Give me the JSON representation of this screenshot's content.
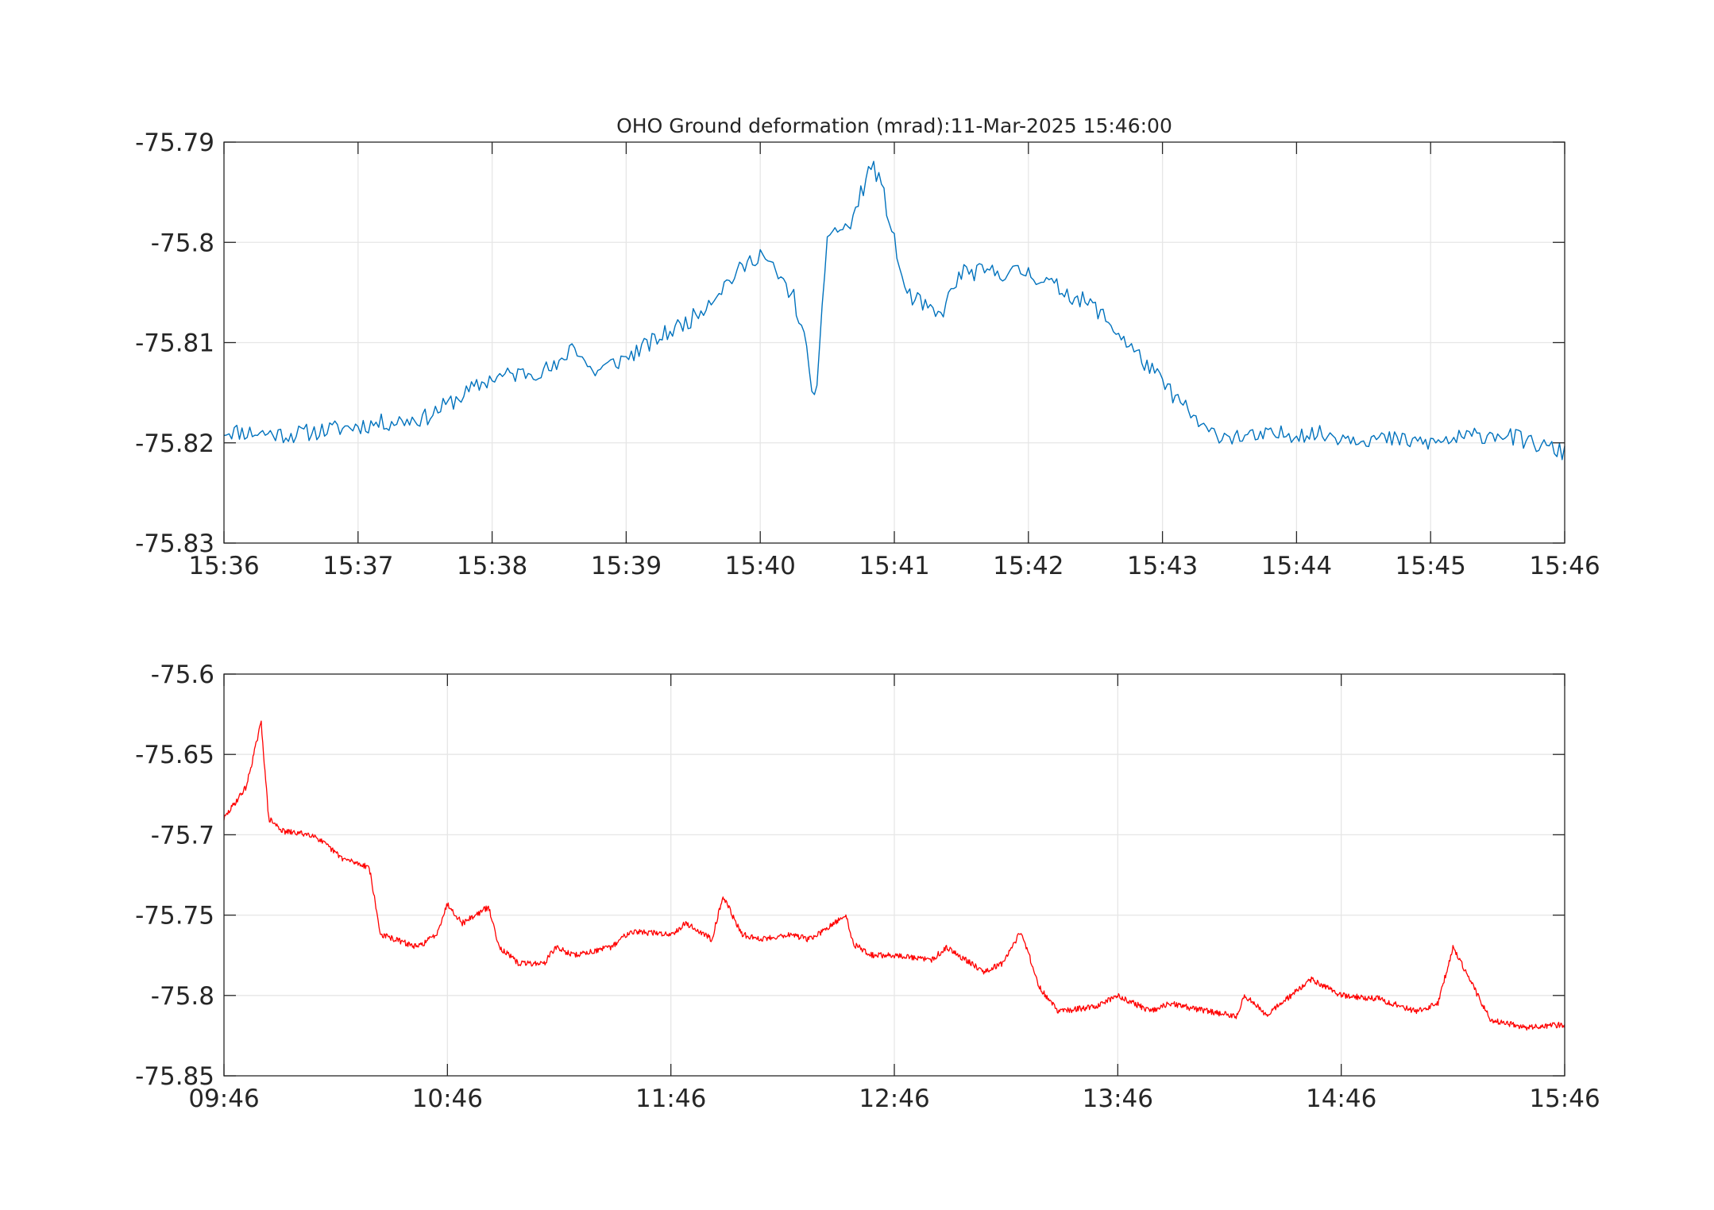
{
  "chart_data": [
    {
      "type": "line",
      "title": "OHO Ground deformation (mrad):11-Mar-2025 15:46:00",
      "xlabel": "",
      "ylabel": "",
      "x_tick_labels": [
        "15:36",
        "15:37",
        "15:38",
        "15:39",
        "15:40",
        "15:41",
        "15:42",
        "15:43",
        "15:44",
        "15:45",
        "15:46"
      ],
      "y_tick_labels": [
        "-75.79",
        "-75.8",
        "-75.81",
        "-75.82",
        "-75.83"
      ],
      "x_range": [
        "15:36",
        "15:46"
      ],
      "ylim": [
        -75.83,
        -75.79
      ],
      "grid": true,
      "series_color": "#0072BD",
      "series": [
        {
          "x": [
            "15:36:00",
            "15:36:30",
            "15:37:00",
            "15:37:30",
            "15:38:00",
            "15:38:30",
            "15:38:36",
            "15:38:45",
            "15:39:00",
            "15:39:30",
            "15:39:45",
            "15:40:00",
            "15:40:15",
            "15:40:20",
            "15:40:25",
            "15:40:30",
            "15:40:40",
            "15:40:50",
            "15:40:55",
            "15:41:00",
            "15:41:05",
            "15:41:20",
            "15:41:30",
            "15:42:00",
            "15:42:30",
            "15:43:00",
            "15:43:20",
            "15:43:40",
            "15:44:00",
            "15:44:30",
            "15:45:00",
            "15:45:30",
            "15:46:00"
          ],
          "y": [
            -75.8188,
            -75.8192,
            -75.8183,
            -75.8175,
            -75.8135,
            -75.8125,
            -75.81,
            -75.813,
            -75.8115,
            -75.8075,
            -75.804,
            -75.801,
            -75.8055,
            -75.81,
            -75.8165,
            -75.799,
            -75.7985,
            -75.792,
            -75.795,
            -75.8,
            -75.805,
            -75.8075,
            -75.803,
            -75.803,
            -75.8065,
            -75.814,
            -75.819,
            -75.8195,
            -75.819,
            -75.8195,
            -75.82,
            -75.819,
            -75.821
          ]
        }
      ]
    },
    {
      "type": "line",
      "title": "",
      "xlabel": "",
      "ylabel": "",
      "x_tick_labels": [
        "09:46",
        "10:46",
        "11:46",
        "12:46",
        "13:46",
        "14:46",
        "15:46"
      ],
      "y_tick_labels": [
        "-75.6",
        "-75.65",
        "-75.7",
        "-75.75",
        "-75.8",
        "-75.85"
      ],
      "x_range": [
        "09:46",
        "15:46"
      ],
      "ylim": [
        -75.85,
        -75.6
      ],
      "grid": true,
      "series_color": "#FF0000",
      "series": [
        {
          "x": [
            "09:46",
            "09:52",
            "09:56",
            "09:58",
            "10:02",
            "10:10",
            "10:18",
            "10:25",
            "10:28",
            "10:38",
            "10:43",
            "10:46",
            "10:50",
            "10:57",
            "11:00",
            "11:05",
            "11:12",
            "11:15",
            "11:20",
            "11:30",
            "11:35",
            "11:46",
            "11:50",
            "11:57",
            "12:00",
            "12:05",
            "12:10",
            "12:18",
            "12:23",
            "12:27",
            "12:33",
            "12:35",
            "12:40",
            "12:46",
            "12:56",
            "13:00",
            "13:10",
            "13:15",
            "13:20",
            "13:25",
            "13:30",
            "13:40",
            "13:46",
            "13:55",
            "14:00",
            "14:06",
            "14:18",
            "14:20",
            "14:26",
            "14:38",
            "14:46",
            "14:56",
            "15:06",
            "15:12",
            "15:16",
            "15:26",
            "15:36",
            "15:46"
          ],
          "y": [
            -75.69,
            -75.67,
            -75.63,
            -75.69,
            -75.698,
            -75.7,
            -75.715,
            -75.72,
            -75.762,
            -75.77,
            -75.762,
            -75.743,
            -75.755,
            -75.745,
            -75.77,
            -75.78,
            -75.78,
            -75.77,
            -75.775,
            -75.77,
            -75.76,
            -75.762,
            -75.755,
            -75.765,
            -75.738,
            -75.762,
            -75.765,
            -75.762,
            -75.765,
            -75.76,
            -75.75,
            -75.768,
            -75.775,
            -75.775,
            -75.778,
            -75.77,
            -75.785,
            -75.78,
            -75.76,
            -75.795,
            -75.81,
            -75.807,
            -75.8,
            -75.81,
            -75.805,
            -75.808,
            -75.813,
            -75.8,
            -75.812,
            -75.79,
            -75.8,
            -75.802,
            -75.81,
            -75.805,
            -75.77,
            -75.815,
            -75.82,
            -75.818
          ]
        }
      ]
    }
  ]
}
